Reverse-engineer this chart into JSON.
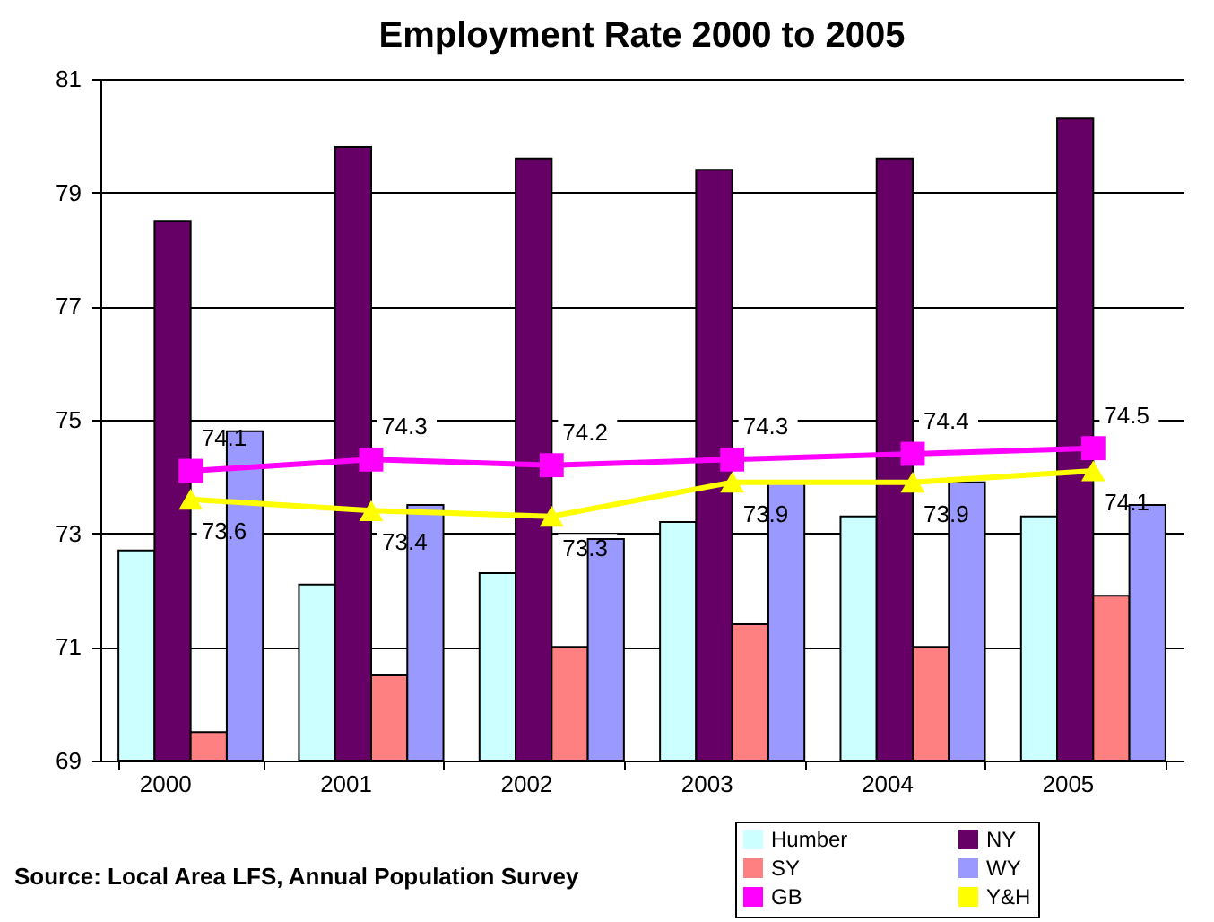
{
  "chart_data": {
    "type": "bar",
    "title": "Employment Rate 2000 to 2005",
    "categories": [
      "2000",
      "2001",
      "2002",
      "2003",
      "2004",
      "2005"
    ],
    "series": [
      {
        "name": "Humber",
        "color": "#ccffff",
        "values": [
          72.7,
          72.1,
          72.3,
          73.2,
          73.3,
          73.3
        ]
      },
      {
        "name": "NY",
        "color": "#660066",
        "values": [
          78.5,
          79.8,
          79.6,
          79.4,
          79.6,
          80.3
        ]
      },
      {
        "name": "SY",
        "color": "#ff8080",
        "values": [
          69.5,
          70.5,
          71.0,
          71.4,
          71.0,
          71.9
        ]
      },
      {
        "name": "WY",
        "color": "#9999ff",
        "values": [
          74.8,
          73.5,
          72.9,
          73.9,
          73.9,
          73.5
        ]
      },
      {
        "name": "GB",
        "type": "line",
        "marker": "square",
        "color": "#ff00ff",
        "values": [
          74.1,
          74.3,
          74.2,
          74.3,
          74.4,
          74.5
        ],
        "value_labels": [
          "74.1",
          "74.3",
          "74.2",
          "74.3",
          "74.4",
          "74.5"
        ]
      },
      {
        "name": "Y&H",
        "type": "line",
        "marker": "triangle",
        "color": "#ffff00",
        "values": [
          73.6,
          73.4,
          73.3,
          73.9,
          73.9,
          74.1
        ],
        "value_labels": [
          "73.6",
          "73.4",
          "73.3",
          "73.9",
          "73.9",
          "74.1"
        ]
      }
    ],
    "ylim": [
      69,
      81
    ],
    "yticks": [
      69,
      71,
      73,
      75,
      77,
      79,
      81
    ],
    "grid": "y",
    "legend": "bottom right",
    "annotations": [
      "Source: Local Area LFS, Annual Population Survey"
    ]
  }
}
